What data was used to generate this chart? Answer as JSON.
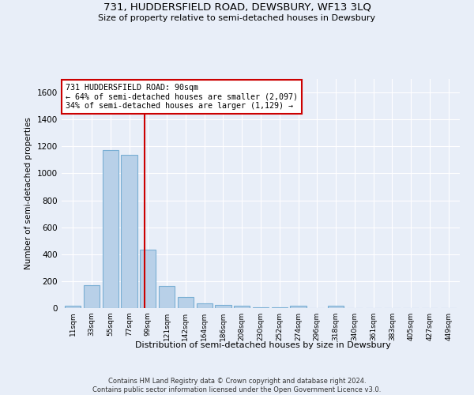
{
  "title": "731, HUDDERSFIELD ROAD, DEWSBURY, WF13 3LQ",
  "subtitle": "Size of property relative to semi-detached houses in Dewsbury",
  "xlabel": "Distribution of semi-detached houses by size in Dewsbury",
  "ylabel": "Number of semi-detached properties",
  "categories": [
    "11sqm",
    "33sqm",
    "55sqm",
    "77sqm",
    "99sqm",
    "121sqm",
    "142sqm",
    "164sqm",
    "186sqm",
    "208sqm",
    "230sqm",
    "252sqm",
    "274sqm",
    "296sqm",
    "318sqm",
    "340sqm",
    "361sqm",
    "383sqm",
    "405sqm",
    "427sqm",
    "449sqm"
  ],
  "values": [
    15,
    170,
    1175,
    1135,
    435,
    165,
    80,
    35,
    22,
    15,
    8,
    5,
    15,
    2,
    15,
    1,
    1,
    0,
    0,
    0,
    0
  ],
  "bar_color": "#b8d0e8",
  "bar_edge_color": "#7aafd4",
  "ylim": [
    0,
    1700
  ],
  "yticks": [
    0,
    200,
    400,
    600,
    800,
    1000,
    1200,
    1400,
    1600
  ],
  "property_label": "731 HUDDERSFIELD ROAD: 90sqm",
  "annotation_line1": "← 64% of semi-detached houses are smaller (2,097)",
  "annotation_line2": "34% of semi-detached houses are larger (1,129) →",
  "vline_color": "#cc0000",
  "vline_x": 3.82,
  "annotation_box_color": "#ffffff",
  "annotation_box_edge_color": "#cc0000",
  "footer_line1": "Contains HM Land Registry data © Crown copyright and database right 2024.",
  "footer_line2": "Contains public sector information licensed under the Open Government Licence v3.0.",
  "background_color": "#e8eef8",
  "grid_color": "#ffffff"
}
